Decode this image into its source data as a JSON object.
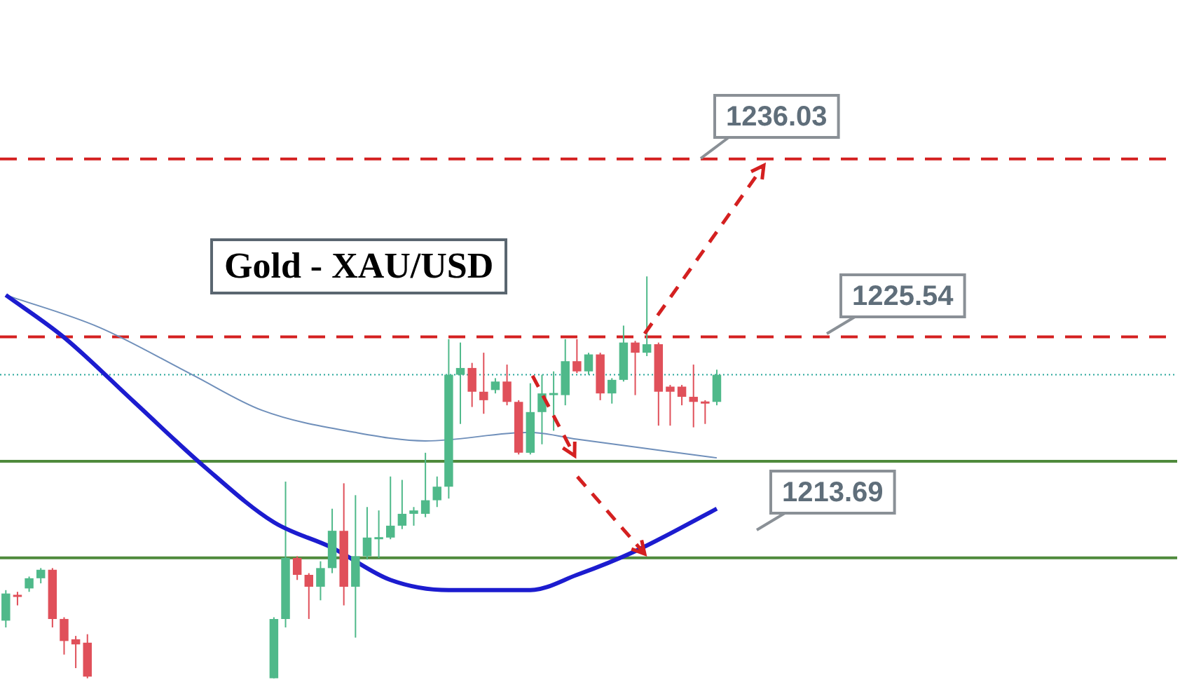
{
  "chart_data": {
    "type": "candlestick",
    "title": "Gold - XAU/USD",
    "categories": [
      null,
      null,
      null,
      null,
      null,
      null,
      null,
      null,
      null,
      null,
      null,
      null,
      null,
      null,
      null,
      null,
      null,
      null,
      null,
      null,
      null,
      null,
      null,
      null,
      null,
      null,
      null,
      null,
      null,
      null,
      null,
      null,
      null,
      null,
      null,
      null,
      null,
      null,
      null,
      null,
      null,
      null,
      null,
      null,
      null,
      null,
      null,
      null,
      null,
      null,
      null,
      null,
      null,
      null,
      null,
      null,
      null,
      null,
      null,
      null,
      null,
      null,
      null,
      null,
      null,
      null,
      null,
      null,
      null,
      null,
      null,
      null,
      null,
      null,
      null,
      null,
      null,
      null,
      null,
      null,
      null,
      null,
      null,
      null,
      null,
      null,
      null,
      null,
      null,
      null,
      null,
      null,
      null,
      null,
      null,
      null,
      null,
      null,
      null,
      null,
      null
    ],
    "ohlc": [
      [
        1208.8,
        1210.6,
        1208.4,
        1210.4
      ],
      [
        1210.3,
        1210.5,
        1209.7,
        1210.2
      ],
      [
        1210.7,
        1211.4,
        1210.5,
        1211.3
      ],
      [
        1211.3,
        1211.9,
        1211.0,
        1211.8
      ],
      [
        1211.8,
        1211.9,
        1208.4,
        1208.9
      ],
      [
        1208.9,
        1209.0,
        1206.8,
        1207.6
      ],
      [
        1207.7,
        1207.9,
        1206.0,
        1207.4
      ],
      [
        1207.5,
        1208.0,
        1205.4,
        1205.5
      ],
      null,
      null,
      null,
      null,
      null,
      null,
      null,
      null,
      null,
      null,
      null,
      null,
      null,
      null,
      null,
      [
        1205.4,
        1209.0,
        1205.4,
        1208.9
      ],
      [
        1208.9,
        1217.0,
        1208.4,
        1212.5
      ],
      [
        1212.5,
        1212.6,
        1211.2,
        1211.5
      ],
      [
        1211.5,
        1211.6,
        1208.9,
        1210.8
      ],
      [
        1210.8,
        1212.3,
        1210.0,
        1211.9
      ],
      [
        1211.9,
        1215.4,
        1211.6,
        1214.1
      ],
      [
        1214.1,
        1216.9,
        1209.7,
        1210.8
      ],
      [
        1210.8,
        1216.2,
        1207.8,
        1212.6
      ],
      [
        1212.6,
        1215.5,
        1212.4,
        1213.7
      ],
      [
        1213.6,
        1215.3,
        1212.5,
        1213.7
      ],
      [
        1213.7,
        1217.3,
        1213.6,
        1214.4
      ],
      [
        1214.4,
        1217.1,
        1214.2,
        1215.1
      ],
      [
        1215.1,
        1215.5,
        1214.4,
        1215.3
      ],
      [
        1215.1,
        1218.7,
        1214.9,
        1215.9
      ],
      [
        1215.9,
        1217.3,
        1215.5,
        1216.7
      ],
      [
        1216.7,
        1225.4,
        1216.0,
        1223.3
      ],
      [
        1223.3,
        1225.2,
        1220.4,
        1223.7
      ],
      [
        1223.7,
        1224.0,
        1221.4,
        1222.3
      ],
      [
        1222.3,
        1224.6,
        1221.0,
        1221.8
      ],
      [
        1222.4,
        1223.1,
        1222.2,
        1222.9
      ],
      [
        1222.9,
        1223.9,
        1221.5,
        1221.7
      ],
      [
        1221.7,
        1221.8,
        1218.6,
        1218.7
      ],
      [
        1218.7,
        1222.8,
        1218.6,
        1221.1
      ],
      [
        1221.1,
        1223.3,
        1219.2,
        1222.2
      ],
      [
        1222.1,
        1223.5,
        1220.0,
        1222.2
      ],
      [
        1222.1,
        1225.4,
        1221.5,
        1224.1
      ],
      [
        1224.1,
        1225.4,
        1223.4,
        1223.5
      ],
      [
        1223.5,
        1224.6,
        1223.3,
        1224.5
      ],
      [
        1224.5,
        1224.6,
        1221.8,
        1222.2
      ],
      [
        1222.2,
        1223.1,
        1221.6,
        1223.0
      ],
      [
        1223.0,
        1226.2,
        1222.9,
        1225.2
      ],
      [
        1225.2,
        1225.3,
        1222.1,
        1224.6
      ],
      [
        1224.6,
        1229.1,
        1224.4,
        1225.1
      ],
      [
        1225.1,
        1225.2,
        1220.3,
        1222.3
      ],
      [
        1222.6,
        1222.7,
        1220.3,
        1222.3
      ],
      [
        1222.6,
        1222.7,
        1221.5,
        1222.0
      ],
      [
        1222.0,
        1223.9,
        1220.2,
        1221.7
      ],
      [
        1221.7,
        1221.8,
        1220.4,
        1221.6
      ],
      [
        1221.7,
        1223.6,
        1221.5,
        1223.3
      ],
      null,
      null,
      null,
      null,
      null,
      null,
      null,
      null,
      null,
      null,
      null,
      null,
      null,
      null,
      null,
      null,
      null,
      null,
      null,
      null,
      null,
      null,
      null,
      null,
      null,
      null,
      null,
      null,
      null,
      null,
      null,
      null,
      null,
      null,
      null,
      null,
      null,
      null,
      null
    ],
    "series": [
      {
        "type": "line",
        "color": "#1c1ccf",
        "values": [
          1228.0,
          null,
          null,
          null,
          null,
          1225.5,
          null,
          null,
          null,
          null,
          null,
          1221.7,
          null,
          null,
          null,
          null,
          null,
          1217.9,
          null,
          null,
          null,
          null,
          null,
          1214.6,
          null,
          null,
          null,
          null,
          1213.1,
          null,
          null,
          null,
          null,
          1211.2,
          null,
          null,
          null,
          null,
          1210.6,
          null,
          null,
          null,
          null,
          null,
          null,
          1210.6,
          null,
          null,
          null,
          1211.5,
          null,
          null,
          null,
          null,
          1212.9,
          null,
          null,
          null,
          null,
          null,
          null,
          1215.4,
          null,
          null,
          null,
          null,
          null,
          null,
          null,
          null,
          null,
          null,
          null,
          null,
          null,
          null,
          null,
          null,
          null,
          null,
          null,
          null,
          null,
          null,
          null,
          null,
          null,
          null,
          null,
          null,
          null,
          null,
          null,
          null,
          null,
          null,
          null,
          null,
          null,
          null,
          null
        ]
      },
      {
        "type": "line",
        "color": "#6f8fba",
        "values": [
          1228.0,
          null,
          null,
          null,
          null,
          null,
          null,
          null,
          1226.1,
          null,
          null,
          null,
          null,
          null,
          null,
          null,
          1223.3,
          null,
          null,
          null,
          null,
          null,
          1221.2,
          null,
          null,
          null,
          null,
          null,
          null,
          null,
          1219.9,
          null,
          null,
          null,
          null,
          null,
          1219.4,
          null,
          null,
          null,
          null,
          null,
          null,
          null,
          null,
          1219.9,
          null,
          null,
          null,
          1219.5,
          null,
          null,
          null,
          null,
          null,
          null,
          null,
          null,
          null,
          null,
          null,
          1218.4,
          null,
          null,
          null,
          null,
          null,
          null,
          null,
          null,
          null,
          null,
          null,
          null,
          null,
          null,
          null,
          null,
          null,
          null,
          null,
          null,
          null,
          null,
          null,
          null,
          null,
          null,
          null,
          null,
          null,
          null,
          null,
          null,
          null,
          null,
          null,
          null,
          null,
          null,
          null
        ]
      }
    ],
    "ylim": [
      1205.3,
      1245.4
    ],
    "tick_labels": false,
    "legend": false,
    "ref_lines": [
      {
        "axis": "y",
        "value": 1236.03,
        "label": "1236.03",
        "color": "#d42020",
        "line_style": "dashed"
      },
      {
        "axis": "y",
        "value": 1225.54,
        "label": "1225.54",
        "color": "#d42020",
        "line_style": "dashed"
      },
      {
        "axis": "y",
        "value": 1223.3,
        "color": "#26a69a",
        "line_style": "dotted"
      },
      {
        "axis": "y",
        "value": 1218.2,
        "color": "#4f8a3c",
        "line_style": "solid"
      },
      {
        "axis": "y",
        "value": 1212.5,
        "color": "#4f8a3c",
        "line_style": "solid"
      }
    ],
    "annotations": [
      "1213.69"
    ]
  }
}
